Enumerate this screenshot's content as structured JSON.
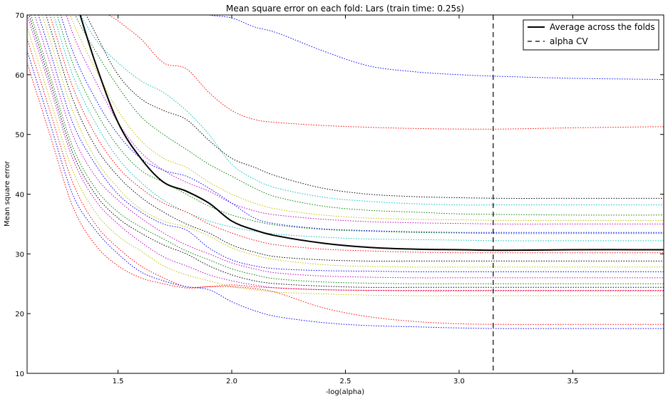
{
  "chart_data": {
    "type": "line",
    "title": "Mean square error on each fold: Lars (train time: 0.25s)",
    "xlabel": "-log(alpha)",
    "ylabel": "Mean square error",
    "xlim": [
      1.1,
      3.9
    ],
    "ylim": [
      10,
      70
    ],
    "xticks": [
      1.5,
      2.0,
      2.5,
      3.0,
      3.5
    ],
    "xtick_labels": [
      "1.5",
      "2.0",
      "2.5",
      "3.0",
      "3.5"
    ],
    "yticks": [
      10,
      20,
      30,
      40,
      50,
      60,
      70
    ],
    "ytick_labels": [
      "10",
      "20",
      "30",
      "40",
      "50",
      "60",
      "70"
    ],
    "grid": false,
    "legend": {
      "position": "top-right",
      "entries": [
        "Average across the folds",
        "alpha CV"
      ]
    },
    "x": [
      1.1,
      1.2,
      1.3,
      1.4,
      1.5,
      1.6,
      1.7,
      1.8,
      1.9,
      2.0,
      2.1,
      2.2,
      2.4,
      2.6,
      2.8,
      3.0,
      3.2,
      3.5,
      3.9
    ],
    "average": {
      "name": "Average across the folds",
      "color": "#000000",
      "values": [
        96,
        85,
        74,
        62,
        52,
        46,
        42,
        40.5,
        38.5,
        35.5,
        34,
        33,
        31.8,
        31.1,
        30.8,
        30.7,
        30.6,
        30.7,
        30.7
      ]
    },
    "alpha_cv": {
      "name": "alpha CV",
      "x": 3.15,
      "color": "#000000"
    },
    "folds": [
      {
        "color": "#0000ff",
        "values": [
          110,
          100,
          90,
          82,
          78,
          75,
          72,
          71,
          70,
          69.5,
          68,
          67,
          64,
          61.5,
          60.5,
          60,
          59.7,
          59.4,
          59.2
        ]
      },
      {
        "color": "#ff0000",
        "values": [
          100,
          90,
          80,
          72,
          69,
          66,
          62,
          61,
          57,
          54,
          52.5,
          52,
          51.5,
          51.2,
          51,
          50.9,
          50.9,
          51.1,
          51.3
        ]
      },
      {
        "color": "#000000",
        "values": [
          98,
          86,
          75,
          67,
          60,
          56,
          54,
          52.5,
          49,
          46,
          44.5,
          43,
          41,
          40,
          39.6,
          39.4,
          39.3,
          39.3,
          39.3
        ]
      },
      {
        "color": "#00bfbf",
        "values": [
          95,
          84,
          73,
          66,
          62,
          59,
          57,
          54,
          50,
          45,
          42.5,
          41,
          39.5,
          38.8,
          38.4,
          38.2,
          38.2,
          38.2,
          38.2
        ]
      },
      {
        "color": "#008000",
        "values": [
          93,
          82,
          71,
          64,
          58,
          53,
          50,
          47.5,
          45,
          43,
          41,
          39.5,
          38,
          37.3,
          37,
          36.7,
          36.6,
          36.5,
          36.5
        ]
      },
      {
        "color": "#bfbf00",
        "values": [
          92,
          80,
          69,
          61,
          54,
          49,
          46,
          44.5,
          42,
          40,
          38.5,
          37.5,
          36.5,
          36,
          35.8,
          35.7,
          35.6,
          35.6,
          35.6
        ]
      },
      {
        "color": "#bf00bf",
        "values": [
          91,
          79,
          67,
          59,
          52,
          47,
          44,
          42,
          40.5,
          38.5,
          37.2,
          36.5,
          35.8,
          35.4,
          35.2,
          35.1,
          35,
          35,
          35
        ]
      },
      {
        "color": "#0000ff",
        "values": [
          88,
          76,
          64,
          56,
          50,
          46,
          44,
          43,
          41,
          38.5,
          36,
          35,
          34.2,
          33.9,
          33.7,
          33.6,
          33.6,
          33.6,
          33.6
        ]
      },
      {
        "color": "#008000",
        "values": [
          86,
          74,
          62,
          54,
          48,
          44,
          42,
          40,
          38,
          36.5,
          35.5,
          34.8,
          34.1,
          33.8,
          33.6,
          33.5,
          33.4,
          33.4,
          33.4
        ]
      },
      {
        "color": "#00bfbf",
        "values": [
          84,
          72,
          60,
          52,
          46,
          42,
          39,
          37,
          35.5,
          34.5,
          33.8,
          33.3,
          32.8,
          32.5,
          32.4,
          32.3,
          32.2,
          32.2,
          32.2
        ]
      },
      {
        "color": "#ff0000",
        "values": [
          82,
          70,
          58,
          50,
          44.5,
          41,
          38.5,
          37,
          35,
          33.5,
          32.3,
          31.5,
          30.8,
          30.5,
          30.3,
          30.2,
          30.2,
          30.2,
          30.2
        ]
      },
      {
        "color": "#000000",
        "values": [
          80,
          68,
          56,
          48,
          43,
          39.5,
          37,
          35,
          33.5,
          31.5,
          30.3,
          29.5,
          29,
          28.8,
          28.8,
          28.8,
          28.8,
          28.8,
          28.8
        ]
      },
      {
        "color": "#bfbf00",
        "values": [
          78,
          66,
          54,
          46,
          41,
          37.5,
          35.5,
          34.5,
          33,
          31,
          29.8,
          29,
          28.2,
          27.9,
          27.8,
          27.8,
          27.8,
          27.8,
          27.8
        ]
      },
      {
        "color": "#0000ff",
        "values": [
          76,
          64,
          52,
          45,
          40,
          37,
          35,
          34,
          31,
          29,
          28,
          27.5,
          27.2,
          27.1,
          27,
          27,
          27,
          27,
          27
        ]
      },
      {
        "color": "#bf00bf",
        "values": [
          74,
          62,
          50,
          43,
          39,
          36,
          33.5,
          31.5,
          30,
          28.5,
          27.5,
          26.8,
          26.3,
          26.1,
          26,
          26,
          26,
          26,
          26
        ]
      },
      {
        "color": "#008000",
        "values": [
          72,
          60,
          48,
          41,
          37,
          34.5,
          32.5,
          30.5,
          29,
          27.5,
          26.5,
          25.8,
          25.3,
          25.1,
          25,
          25,
          25,
          25,
          25
        ]
      },
      {
        "color": "#000000",
        "values": [
          71,
          59,
          47,
          40,
          36,
          33.5,
          31.5,
          30,
          28,
          26.5,
          25.5,
          25,
          24.6,
          24.4,
          24.4,
          24.4,
          24.4,
          24.4,
          24.4
        ]
      },
      {
        "color": "#bf00bf",
        "values": [
          70,
          58,
          46,
          39,
          35,
          32,
          29.5,
          28,
          26.5,
          25.5,
          24.8,
          24.3,
          24,
          23.9,
          23.8,
          23.8,
          23.8,
          23.8,
          23.8
        ]
      },
      {
        "color": "#bfbf00",
        "values": [
          68,
          56,
          44,
          37,
          33,
          30.5,
          28,
          26.5,
          25.5,
          24.5,
          24,
          23.6,
          23.3,
          23.1,
          23,
          23,
          23,
          23,
          23
        ]
      },
      {
        "color": "#ff0000",
        "values": [
          66,
          54,
          42,
          35,
          31,
          28,
          26,
          24.5,
          24.5,
          24.5,
          24.2,
          23.5,
          21,
          19.5,
          18.7,
          18.3,
          18.2,
          18.2,
          18.2
        ]
      },
      {
        "color": "#0000ff",
        "values": [
          64,
          52,
          40,
          34,
          30,
          27,
          25.5,
          24.5,
          24,
          22,
          20.5,
          19.5,
          18.5,
          18,
          17.8,
          17.6,
          17.5,
          17.5,
          17.5
        ]
      },
      {
        "color": "#ff0000",
        "values": [
          62,
          50,
          38,
          31.5,
          28,
          26,
          25,
          24.3,
          24.5,
          24.8,
          24.5,
          24.3,
          24,
          23.9,
          23.9,
          23.9,
          23.9,
          23.9,
          23.9
        ]
      }
    ]
  }
}
